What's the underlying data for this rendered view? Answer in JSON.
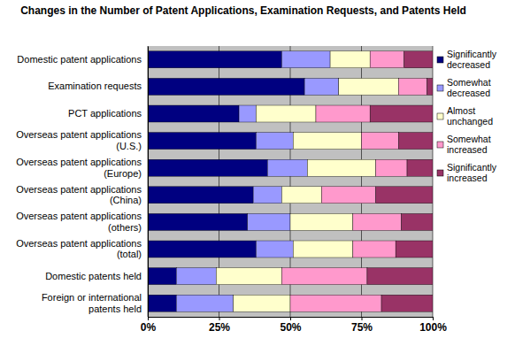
{
  "chart_data": {
    "type": "bar",
    "orientation": "horizontal",
    "stacked": true,
    "title": "Changes in the Number of Patent Applications, Examination Requests, and Patents Held",
    "categories": [
      "Domestic patent applications",
      "Examination requests",
      "PCT applications",
      "Overseas patent applications (U.S.)",
      "Overseas patent applications (Europe)",
      "Overseas patent applications (China)",
      "Overseas patent applications (others)",
      "Overseas patent applications (total)",
      "Domestic patents held",
      "Foreign or international patents held"
    ],
    "series": [
      {
        "name": "Significantly decreased",
        "color": "#000080",
        "values": [
          47,
          55,
          32,
          38,
          42,
          37,
          35,
          38,
          10,
          10
        ]
      },
      {
        "name": "Somewhat decreased",
        "color": "#9999ff",
        "values": [
          17,
          12,
          6,
          13,
          14,
          10,
          15,
          13,
          14,
          20
        ]
      },
      {
        "name": "Almost unchanged",
        "color": "#ffffcc",
        "values": [
          14,
          21,
          21,
          24,
          24,
          14,
          22,
          21,
          23,
          20
        ]
      },
      {
        "name": "Somewhat increased",
        "color": "#ff99cc",
        "values": [
          12,
          10,
          19,
          13,
          11,
          19,
          17,
          15,
          30,
          32
        ]
      },
      {
        "name": "Significantly increased",
        "color": "#993366",
        "values": [
          10,
          2,
          22,
          12,
          9,
          20,
          11,
          13,
          23,
          18
        ]
      }
    ],
    "xlim": [
      0,
      100
    ],
    "xticks": [
      {
        "value": 0,
        "label": "0%"
      },
      {
        "value": 25,
        "label": "25%"
      },
      {
        "value": 50,
        "label": "50%"
      },
      {
        "value": 75,
        "label": "75%"
      },
      {
        "value": 100,
        "label": "100%"
      }
    ],
    "grid": true,
    "legend": "right"
  }
}
